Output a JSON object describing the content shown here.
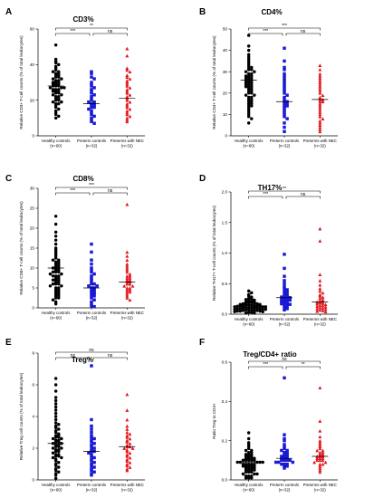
{
  "chart_data": [
    {
      "type": "scatter",
      "panel": "A",
      "title": "CD3%",
      "ylabel": "Relative CD3+ T-cell counts (% of total leukocytes)",
      "ylim": [
        0,
        60
      ],
      "yticks": [
        0,
        20,
        40,
        60
      ],
      "categories": [
        "Healthy controls",
        "Preterm controls",
        "Preterms with NEC"
      ],
      "category_n": [
        "(n=60)",
        "(n=32)",
        "(n=32)"
      ],
      "series": [
        {
          "values": [
            51,
            43,
            42,
            41,
            40,
            39,
            38,
            37,
            36,
            36,
            35,
            35,
            34,
            34,
            33,
            33,
            32,
            32,
            31,
            31,
            30,
            30,
            30,
            29,
            29,
            29,
            28,
            28,
            28,
            27,
            27,
            27,
            26,
            26,
            26,
            25,
            25,
            25,
            24,
            24,
            23,
            23,
            22,
            22,
            21,
            21,
            20,
            20,
            19,
            19,
            18,
            18,
            17,
            16,
            15,
            14,
            13,
            12,
            11,
            10
          ],
          "median": 28
        },
        {
          "values": [
            36,
            35,
            33,
            32,
            30,
            29,
            28,
            27,
            26,
            25,
            24,
            23,
            22,
            21,
            20,
            19,
            19,
            18,
            18,
            17,
            17,
            16,
            16,
            15,
            14,
            13,
            12,
            11,
            10,
            9,
            8,
            7
          ],
          "median": 18
        },
        {
          "values": [
            49,
            45,
            38,
            37,
            36,
            34,
            33,
            32,
            31,
            30,
            29,
            28,
            27,
            26,
            25,
            24,
            23,
            22,
            21,
            20,
            19,
            18,
            17,
            16,
            15,
            14,
            13,
            12,
            11,
            10,
            9,
            8
          ],
          "median": 21
        }
      ],
      "comparisons": [
        {
          "between": [
            0,
            1
          ],
          "label": "***"
        },
        {
          "between": [
            1,
            2
          ],
          "label": "ns"
        },
        {
          "between": [
            0,
            2
          ],
          "label": "**"
        }
      ]
    },
    {
      "type": "scatter",
      "panel": "B",
      "title": "CD4%",
      "ylabel": "Relative CD4+ T-cell counts (% of total leukocytes)",
      "ylim": [
        0,
        50
      ],
      "yticks": [
        0,
        10,
        20,
        30,
        40,
        50
      ],
      "categories": [
        "Healthy controls",
        "Preterm controls",
        "Preterms with NEC"
      ],
      "category_n": [
        "(n=60)",
        "(n=32)",
        "(n=32)"
      ],
      "series": [
        {
          "values": [
            47,
            42,
            40,
            38,
            37,
            36,
            35,
            34,
            33,
            32,
            32,
            31,
            31,
            30,
            30,
            29,
            29,
            28,
            28,
            28,
            27,
            27,
            27,
            26,
            26,
            26,
            25,
            25,
            25,
            24,
            24,
            24,
            23,
            23,
            23,
            22,
            22,
            21,
            21,
            20,
            20,
            19,
            19,
            18,
            18,
            17,
            17,
            16,
            16,
            15,
            15,
            14,
            14,
            13,
            12,
            11,
            10,
            9,
            8,
            6
          ],
          "median": 26
        },
        {
          "values": [
            41,
            35,
            32,
            31,
            29,
            28,
            27,
            26,
            25,
            24,
            23,
            22,
            21,
            20,
            19,
            18,
            17,
            16,
            16,
            15,
            15,
            14,
            14,
            13,
            12,
            11,
            10,
            9,
            8,
            6,
            4,
            2
          ],
          "median": 16
        },
        {
          "values": [
            33,
            31,
            29,
            28,
            27,
            26,
            25,
            24,
            23,
            22,
            21,
            20,
            19,
            18,
            17,
            17,
            16,
            16,
            15,
            14,
            13,
            12,
            11,
            10,
            9,
            8,
            7,
            6,
            5,
            4,
            3,
            2
          ],
          "median": 17
        }
      ],
      "comparisons": [
        {
          "between": [
            0,
            1
          ],
          "label": "***"
        },
        {
          "between": [
            1,
            2
          ],
          "label": "ns"
        },
        {
          "between": [
            0,
            2
          ],
          "label": "***"
        }
      ]
    },
    {
      "type": "scatter",
      "panel": "C",
      "title": "CD8%",
      "ylabel": "Relative CD8+ T-cell counts (% of total leukocytes)",
      "ylim": [
        0,
        30
      ],
      "yticks": [
        0,
        5,
        10,
        15,
        20,
        25,
        30
      ],
      "categories": [
        "Healthy controls",
        "Preterm controls",
        "Preterms with NEC"
      ],
      "category_n": [
        "(n=60)",
        "(n=32)",
        "(n=32)"
      ],
      "series": [
        {
          "values": [
            23,
            21,
            19,
            18,
            17,
            16,
            15,
            14.5,
            14,
            13.5,
            13,
            12.5,
            12,
            12,
            11.5,
            11.5,
            11,
            11,
            10.5,
            10.5,
            10,
            10,
            10,
            9.5,
            9.5,
            9,
            9,
            9,
            8.5,
            8.5,
            8,
            8,
            8,
            7.5,
            7.5,
            7,
            7,
            7,
            6.5,
            6.5,
            6,
            6,
            6,
            5.5,
            5.5,
            5,
            5,
            4.5,
            4.5,
            4,
            4,
            3.5,
            3.5,
            3,
            3,
            2.5,
            2.5,
            2,
            1.5,
            1
          ],
          "median": 10
        },
        {
          "values": [
            16,
            14,
            12,
            11,
            10,
            9.5,
            9,
            8.5,
            8,
            7.5,
            7,
            6.5,
            6,
            6,
            5.5,
            5.5,
            5,
            5,
            4.5,
            4.5,
            4,
            4,
            3.5,
            3.5,
            3,
            3,
            2.5,
            2,
            1.5,
            1,
            0.5,
            0.3
          ],
          "median": 5
        },
        {
          "values": [
            26,
            14,
            13,
            12,
            11,
            10.5,
            10,
            9.5,
            9,
            8.5,
            8,
            8,
            7.5,
            7.5,
            7,
            7,
            6.5,
            6.5,
            6,
            6,
            5.5,
            5.5,
            5,
            5,
            4.5,
            4.5,
            4,
            4,
            3.5,
            3,
            2.5,
            2
          ],
          "median": 6.5
        }
      ],
      "comparisons": [
        {
          "between": [
            0,
            1
          ],
          "label": "***"
        },
        {
          "between": [
            1,
            2
          ],
          "label": "ns"
        },
        {
          "between": [
            0,
            2
          ],
          "label": "***"
        }
      ]
    },
    {
      "type": "scatter",
      "panel": "D",
      "title": "TH17%",
      "ylabel": "Relative TH17+ T-cell counts (% of total leukocytes)",
      "ylim": [
        0,
        2.0
      ],
      "yticks": [
        0.0,
        0.5,
        1.0,
        1.5,
        2.0
      ],
      "categories": [
        "Healthy controls",
        "Preterm controls",
        "Preterms with NEC"
      ],
      "category_n": [
        "(n=60)",
        "(n=32)",
        "(n=32)"
      ],
      "series": [
        {
          "values": [
            0.38,
            0.35,
            0.32,
            0.3,
            0.28,
            0.26,
            0.25,
            0.24,
            0.23,
            0.22,
            0.21,
            0.2,
            0.2,
            0.19,
            0.19,
            0.18,
            0.18,
            0.17,
            0.17,
            0.16,
            0.16,
            0.15,
            0.15,
            0.15,
            0.14,
            0.14,
            0.14,
            0.13,
            0.13,
            0.13,
            0.12,
            0.12,
            0.12,
            0.11,
            0.11,
            0.11,
            0.1,
            0.1,
            0.1,
            0.09,
            0.09,
            0.09,
            0.08,
            0.08,
            0.08,
            0.07,
            0.07,
            0.07,
            0.06,
            0.06,
            0.06,
            0.05,
            0.05,
            0.05,
            0.04,
            0.04,
            0.03,
            0.03,
            0.02,
            0.02
          ],
          "median": 0.12
        },
        {
          "values": [
            0.98,
            0.75,
            0.62,
            0.55,
            0.5,
            0.45,
            0.42,
            0.4,
            0.38,
            0.36,
            0.34,
            0.32,
            0.3,
            0.29,
            0.28,
            0.27,
            0.26,
            0.25,
            0.24,
            0.23,
            0.22,
            0.21,
            0.2,
            0.19,
            0.18,
            0.17,
            0.16,
            0.15,
            0.13,
            0.11,
            0.09,
            0.07
          ],
          "median": 0.27
        },
        {
          "values": [
            1.4,
            1.2,
            0.65,
            0.55,
            0.48,
            0.42,
            0.38,
            0.35,
            0.32,
            0.3,
            0.28,
            0.26,
            0.24,
            0.22,
            0.21,
            0.2,
            0.19,
            0.18,
            0.17,
            0.16,
            0.15,
            0.14,
            0.13,
            0.12,
            0.11,
            0.1,
            0.09,
            0.08,
            0.07,
            0.06,
            0.05,
            0.04
          ],
          "median": 0.2
        }
      ],
      "comparisons": [
        {
          "between": [
            0,
            1
          ],
          "label": "***"
        },
        {
          "between": [
            1,
            2
          ],
          "label": "ns"
        },
        {
          "between": [
            0,
            2
          ],
          "label": "**"
        }
      ]
    },
    {
      "type": "scatter",
      "panel": "E",
      "title": "Treg%",
      "ylabel": "Relative Treg cell counts (% of total leukocytes)",
      "ylim": [
        0,
        8
      ],
      "yticks": [
        0,
        2,
        4,
        6,
        8
      ],
      "categories": [
        "Healthy controls",
        "Preterm controls",
        "Preterms with NEC"
      ],
      "category_n": [
        "(n=60)",
        "(n=32)",
        "(n=32)"
      ],
      "series": [
        {
          "values": [
            6.4,
            6.0,
            5.6,
            5.2,
            5.0,
            4.8,
            4.6,
            4.4,
            4.2,
            4.0,
            3.8,
            3.6,
            3.5,
            3.4,
            3.3,
            3.2,
            3.1,
            3.0,
            2.9,
            2.8,
            2.8,
            2.7,
            2.7,
            2.6,
            2.6,
            2.5,
            2.5,
            2.4,
            2.4,
            2.3,
            2.3,
            2.2,
            2.2,
            2.1,
            2.1,
            2.0,
            2.0,
            1.9,
            1.9,
            1.8,
            1.8,
            1.7,
            1.6,
            1.6,
            1.5,
            1.5,
            1.4,
            1.4,
            1.3,
            1.2,
            1.1,
            1.0,
            0.9,
            0.8,
            0.7,
            0.6,
            0.5,
            0.4,
            0.3,
            0.1
          ],
          "median": 2.3
        },
        {
          "values": [
            7.2,
            3.8,
            3.4,
            3.2,
            3.0,
            2.8,
            2.7,
            2.6,
            2.5,
            2.4,
            2.3,
            2.2,
            2.1,
            2.0,
            1.9,
            1.8,
            1.8,
            1.7,
            1.6,
            1.5,
            1.4,
            1.3,
            1.2,
            1.1,
            1.0,
            0.9,
            0.8,
            0.7,
            0.6,
            0.5,
            0.4,
            0.3
          ],
          "median": 1.8
        },
        {
          "values": [
            5.4,
            4.4,
            3.8,
            3.4,
            3.2,
            3.0,
            2.9,
            2.8,
            2.7,
            2.6,
            2.5,
            2.4,
            2.3,
            2.2,
            2.1,
            2.1,
            2.0,
            2.0,
            1.9,
            1.8,
            1.7,
            1.6,
            1.5,
            1.4,
            1.3,
            1.2,
            1.1,
            1.0,
            0.9,
            0.8,
            0.7,
            0.6
          ],
          "median": 2.1
        }
      ],
      "comparisons": [
        {
          "between": [
            0,
            1
          ],
          "label": "ns"
        },
        {
          "between": [
            1,
            2
          ],
          "label": "ns"
        },
        {
          "between": [
            0,
            2
          ],
          "label": "ns"
        }
      ]
    },
    {
      "type": "scatter",
      "panel": "F",
      "title": "Treg/CD4+ ratio",
      "ylabel": "Ratio Treg to CD4+",
      "ylim": [
        0,
        0.6
      ],
      "yticks": [
        0.0,
        0.2,
        0.4,
        0.6
      ],
      "categories": [
        "Healthy controls",
        "Preterm controls",
        "Preterms with NEC"
      ],
      "category_n": [
        "(n=60)",
        "(n=32)",
        "(n=32)"
      ],
      "series": [
        {
          "values": [
            0.24,
            0.21,
            0.19,
            0.18,
            0.17,
            0.16,
            0.15,
            0.15,
            0.14,
            0.14,
            0.13,
            0.13,
            0.13,
            0.12,
            0.12,
            0.12,
            0.11,
            0.11,
            0.11,
            0.11,
            0.1,
            0.1,
            0.1,
            0.1,
            0.1,
            0.09,
            0.09,
            0.09,
            0.09,
            0.09,
            0.08,
            0.08,
            0.08,
            0.08,
            0.08,
            0.07,
            0.07,
            0.07,
            0.07,
            0.07,
            0.06,
            0.06,
            0.06,
            0.06,
            0.05,
            0.05,
            0.05,
            0.05,
            0.04,
            0.04,
            0.04,
            0.03,
            0.03,
            0.03,
            0.02,
            0.02,
            0.02,
            0.01,
            0.01,
            0.01
          ],
          "median": 0.09
        },
        {
          "values": [
            0.52,
            0.23,
            0.21,
            0.2,
            0.18,
            0.17,
            0.16,
            0.15,
            0.15,
            0.14,
            0.14,
            0.13,
            0.13,
            0.12,
            0.12,
            0.12,
            0.11,
            0.11,
            0.11,
            0.1,
            0.1,
            0.1,
            0.1,
            0.09,
            0.09,
            0.09,
            0.08,
            0.08,
            0.08,
            0.07,
            0.07,
            0.06
          ],
          "median": 0.11
        },
        {
          "values": [
            0.47,
            0.3,
            0.25,
            0.22,
            0.2,
            0.19,
            0.18,
            0.17,
            0.16,
            0.15,
            0.15,
            0.14,
            0.14,
            0.13,
            0.13,
            0.12,
            0.12,
            0.12,
            0.11,
            0.11,
            0.11,
            0.1,
            0.1,
            0.1,
            0.09,
            0.09,
            0.08,
            0.08,
            0.07,
            0.06,
            0.05,
            0.04
          ],
          "median": 0.12
        }
      ],
      "comparisons": [
        {
          "between": [
            0,
            1
          ],
          "label": "***"
        },
        {
          "between": [
            1,
            2
          ],
          "label": "**"
        },
        {
          "between": [
            0,
            2
          ],
          "label": "ns"
        }
      ]
    }
  ],
  "style": {
    "series_colors": [
      "#000000",
      "#1a1ad6",
      "#e3151c"
    ],
    "series_markers": [
      "circle",
      "square",
      "triangle"
    ]
  }
}
